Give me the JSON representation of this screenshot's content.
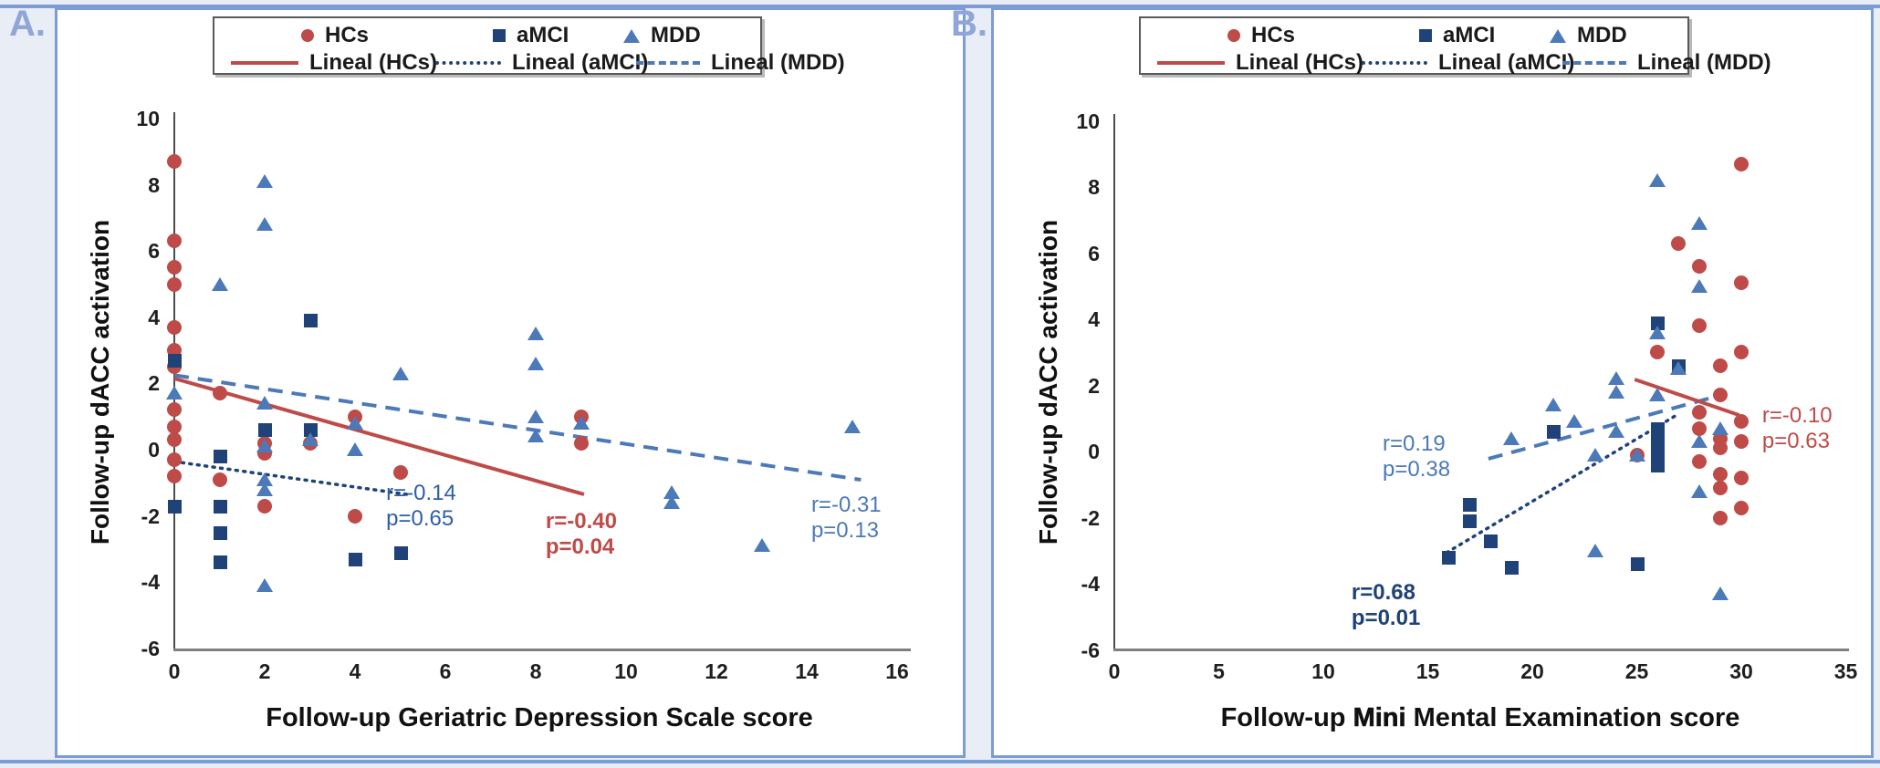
{
  "page": {
    "panel_a_label": "A.",
    "panel_b_label": "B."
  },
  "legend": {
    "items": [
      "HCs",
      "aMCI",
      "MDD"
    ],
    "lines": [
      "Lineal (HCs)",
      "Lineal (aMCI)",
      "Lineal (MDD)"
    ]
  },
  "colors": {
    "hcs": "#be4b48",
    "amci": "#1f4279",
    "mdd": "#4c79b8"
  },
  "chart_data": [
    {
      "panel": "A",
      "type": "scatter",
      "xlabel": "Follow-up Geriatric Depression Scale score",
      "ylabel": "Follow-up dACC activation",
      "xlim": [
        0,
        16
      ],
      "ylim": [
        -6,
        10
      ],
      "xticks": [
        0,
        2,
        4,
        6,
        8,
        10,
        12,
        14,
        16
      ],
      "yticks": [
        10,
        8,
        6,
        4,
        2,
        0,
        -2,
        -4,
        -6
      ],
      "grid": false,
      "legend_position": "top",
      "series": [
        {
          "name": "HCs",
          "marker": "circle",
          "color": "#be4b48",
          "points": [
            [
              0,
              8.7
            ],
            [
              0,
              6.3
            ],
            [
              0,
              5.5
            ],
            [
              0,
              5.0
            ],
            [
              0,
              3.7
            ],
            [
              0,
              3.0
            ],
            [
              0,
              2.5
            ],
            [
              0,
              1.2
            ],
            [
              0,
              0.7
            ],
            [
              0,
              0.3
            ],
            [
              0,
              -0.3
            ],
            [
              0,
              -0.8
            ],
            [
              1,
              1.7
            ],
            [
              1,
              -0.9
            ],
            [
              2,
              0.2
            ],
            [
              2,
              -0.1
            ],
            [
              2,
              -1.7
            ],
            [
              3,
              0.2
            ],
            [
              4,
              1.0
            ],
            [
              4,
              -2.0
            ],
            [
              5,
              -0.7
            ],
            [
              9,
              1.0
            ],
            [
              9,
              0.2
            ]
          ]
        },
        {
          "name": "aMCI",
          "marker": "square",
          "color": "#1f4279",
          "points": [
            [
              0,
              2.7
            ],
            [
              0,
              -1.7
            ],
            [
              1,
              -0.2
            ],
            [
              1,
              -1.7
            ],
            [
              1,
              -2.5
            ],
            [
              1,
              -3.4
            ],
            [
              2,
              0.6
            ],
            [
              3,
              3.9
            ],
            [
              3,
              0.6
            ],
            [
              4,
              -3.3
            ],
            [
              5,
              -3.1
            ]
          ]
        },
        {
          "name": "MDD",
          "marker": "triangle",
          "color": "#4c79b8",
          "points": [
            [
              2,
              8.1
            ],
            [
              2,
              6.8
            ],
            [
              1,
              5.0
            ],
            [
              0,
              1.7
            ],
            [
              2,
              1.4
            ],
            [
              2,
              0.1
            ],
            [
              2,
              -0.9
            ],
            [
              2,
              -1.2
            ],
            [
              2,
              -4.1
            ],
            [
              3,
              0.3
            ],
            [
              4,
              0.8
            ],
            [
              4,
              0.0
            ],
            [
              5,
              2.3
            ],
            [
              8,
              3.5
            ],
            [
              8,
              2.6
            ],
            [
              8,
              1.0
            ],
            [
              8,
              0.4
            ],
            [
              9,
              0.8
            ],
            [
              11,
              -1.3
            ],
            [
              11,
              -1.6
            ],
            [
              13,
              -2.9
            ],
            [
              15,
              0.7
            ]
          ]
        }
      ],
      "trendlines": [
        {
          "name": "Lineal (MDD)",
          "style": "dashed",
          "color": "#4c79b8",
          "from": [
            0,
            2.25
          ],
          "to": [
            15.2,
            -0.91
          ]
        },
        {
          "name": "Lineal (aMCI)",
          "style": "dotted",
          "color": "#1f4279",
          "from": [
            0,
            -0.36
          ],
          "to": [
            5.15,
            -1.35
          ]
        },
        {
          "name": "Lineal (HCs)",
          "style": "solid",
          "color": "#be4b48",
          "from": [
            0,
            2.15
          ],
          "to": [
            9.07,
            -1.35
          ]
        }
      ],
      "annotations": [
        {
          "lines": [
            "r=-0.14",
            "p=0.65"
          ],
          "series": "aMCI",
          "color": "#2e5fa8",
          "bold": false,
          "x": 4.69,
          "y": -1.35
        },
        {
          "lines": [
            "r=-0.40",
            "p=0.04"
          ],
          "series": "HCs",
          "color": "#be4b48",
          "bold": true,
          "x": 8.22,
          "y": -2.2
        },
        {
          "lines": [
            "r=-0.31",
            "p=0.13"
          ],
          "series": "MDD",
          "color": "#4c79b8",
          "bold": false,
          "x": 14.1,
          "y": -1.71
        }
      ]
    },
    {
      "panel": "B",
      "type": "scatter",
      "xlabel_parts": {
        "pre": "Follow-up ",
        "emph": "Mini",
        "post": " Mental Examination score"
      },
      "ylabel": "Follow-up dACC activation",
      "xlim": [
        0,
        35
      ],
      "ylim": [
        -6,
        10
      ],
      "xticks": [
        0,
        5,
        10,
        15,
        20,
        25,
        30,
        35
      ],
      "yticks": [
        10,
        8,
        6,
        4,
        2,
        0,
        -2,
        -4,
        -6
      ],
      "grid": false,
      "legend_position": "top",
      "series": [
        {
          "name": "HCs",
          "marker": "circle",
          "color": "#be4b48",
          "points": [
            [
              30,
              8.7
            ],
            [
              27,
              6.3
            ],
            [
              28,
              5.6
            ],
            [
              30,
              5.1
            ],
            [
              28,
              3.8
            ],
            [
              26,
              3.0
            ],
            [
              30,
              3.0
            ],
            [
              29,
              2.6
            ],
            [
              29,
              1.7
            ],
            [
              28,
              1.2
            ],
            [
              30,
              0.9
            ],
            [
              28,
              0.7
            ],
            [
              29,
              0.4
            ],
            [
              30,
              0.3
            ],
            [
              29,
              0.1
            ],
            [
              25,
              -0.1
            ],
            [
              28,
              -0.3
            ],
            [
              29,
              -0.7
            ],
            [
              30,
              -0.8
            ],
            [
              29,
              -1.1
            ],
            [
              30,
              -1.7
            ],
            [
              29,
              -2.0
            ]
          ]
        },
        {
          "name": "aMCI",
          "marker": "square",
          "color": "#1f4279",
          "points": [
            [
              26,
              3.9
            ],
            [
              27,
              2.6
            ],
            [
              21,
              0.6
            ],
            [
              26,
              0.7
            ],
            [
              26,
              0.3
            ],
            [
              26,
              0.0
            ],
            [
              26,
              -0.4
            ],
            [
              17,
              -1.6
            ],
            [
              17,
              -2.1
            ],
            [
              18,
              -2.7
            ],
            [
              16,
              -3.2
            ],
            [
              19,
              -3.5
            ],
            [
              25,
              -3.4
            ]
          ]
        },
        {
          "name": "MDD",
          "marker": "triangle",
          "color": "#4c79b8",
          "points": [
            [
              26,
              8.2
            ],
            [
              28,
              6.9
            ],
            [
              28,
              5.0
            ],
            [
              26,
              3.6
            ],
            [
              27,
              2.5
            ],
            [
              24,
              2.2
            ],
            [
              24,
              1.8
            ],
            [
              26,
              1.7
            ],
            [
              21,
              1.4
            ],
            [
              22,
              0.9
            ],
            [
              24,
              0.6
            ],
            [
              19,
              0.4
            ],
            [
              28,
              0.3
            ],
            [
              29,
              0.7
            ],
            [
              23,
              -0.1
            ],
            [
              25,
              -0.1
            ],
            [
              28,
              -1.2
            ],
            [
              23,
              -3.0
            ],
            [
              29,
              -4.3
            ]
          ]
        }
      ],
      "trendlines": [
        {
          "name": "Lineal (MDD)",
          "style": "dashed",
          "color": "#4c79b8",
          "from": [
            17.9,
            -0.22
          ],
          "to": [
            28.6,
            1.63
          ]
        },
        {
          "name": "Lineal (aMCI)",
          "style": "dotted",
          "color": "#1f4279",
          "from": [
            15.9,
            -3.06
          ],
          "to": [
            26.9,
            1.1
          ]
        },
        {
          "name": "Lineal (HCs)",
          "style": "solid",
          "color": "#be4b48",
          "from": [
            24.9,
            2.18
          ],
          "to": [
            29.9,
            1.1
          ]
        }
      ],
      "annotations": [
        {
          "lines": [
            "r=0.19",
            "p=0.38"
          ],
          "series": "MDD",
          "color": "#4c79b8",
          "bold": false,
          "x": 12.84,
          "y": 0.2
        },
        {
          "lines": [
            "r=0.68",
            "p=0.01"
          ],
          "series": "aMCI",
          "color": "#1f4279",
          "bold": true,
          "x": 11.35,
          "y": -4.3
        },
        {
          "lines": [
            "r=-0.10",
            "p=0.63"
          ],
          "series": "HCs",
          "color": "#be4b48",
          "bold": false,
          "x": 31.0,
          "y": 1.05
        }
      ]
    }
  ]
}
